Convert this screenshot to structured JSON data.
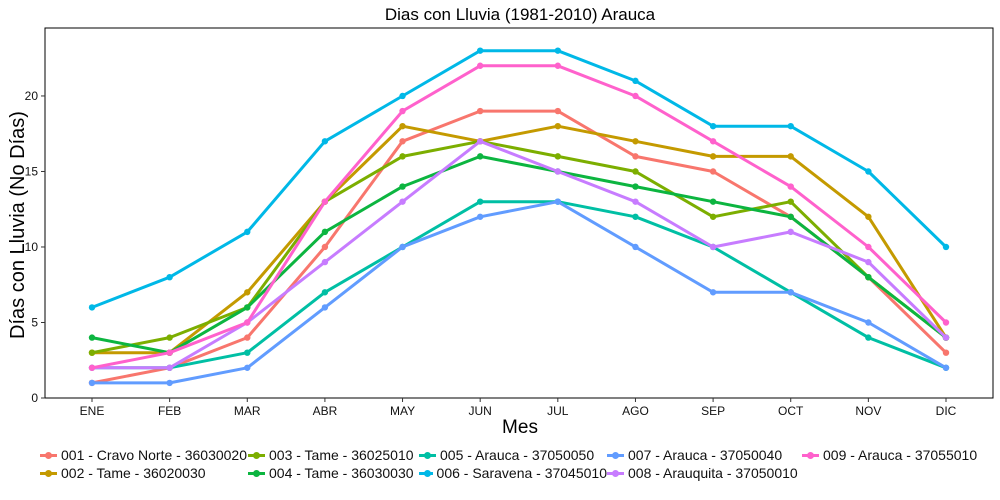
{
  "chart_data": {
    "type": "line",
    "title": "Dias con Lluvia (1981-2010)  Arauca",
    "xlabel": "Mes",
    "ylabel": "Días con Lluvia (No Días)",
    "categories": [
      "ENE",
      "FEB",
      "MAR",
      "ABR",
      "MAY",
      "JUN",
      "JUL",
      "AGO",
      "SEP",
      "OCT",
      "NOV",
      "DIC"
    ],
    "ylim": [
      0,
      24.5
    ],
    "yticks": [
      0,
      5,
      10,
      15,
      20
    ],
    "grid": false,
    "legend_position": "bottom",
    "series": [
      {
        "name": "001 - Cravo Norte - 36030020",
        "color": "#F8766D",
        "values": [
          1,
          2,
          4,
          10,
          17,
          19,
          19,
          16,
          15,
          12,
          8,
          3
        ]
      },
      {
        "name": "002 - Tame - 36020030",
        "color": "#C49A00",
        "values": [
          3,
          3,
          7,
          13,
          18,
          17,
          18,
          17,
          16,
          16,
          12,
          4
        ]
      },
      {
        "name": "003 - Tame - 36025010",
        "color": "#7CAE00",
        "values": [
          3,
          4,
          6,
          13,
          16,
          17,
          16,
          15,
          12,
          13,
          8,
          4
        ]
      },
      {
        "name": "004 - Tame - 36030030",
        "color": "#0CB540",
        "values": [
          4,
          3,
          6,
          11,
          14,
          16,
          15,
          14,
          13,
          12,
          8,
          4
        ]
      },
      {
        "name": "005 - Arauca - 37050050",
        "color": "#00BFA4",
        "values": [
          2,
          2,
          3,
          7,
          10,
          13,
          13,
          12,
          10,
          7,
          4,
          2
        ]
      },
      {
        "name": "006 - Saravena - 37045010",
        "color": "#00B8E7",
        "values": [
          6,
          8,
          11,
          17,
          20,
          23,
          23,
          21,
          18,
          18,
          15,
          10
        ]
      },
      {
        "name": "007 - Arauca - 37050040",
        "color": "#619CFF",
        "values": [
          1,
          1,
          2,
          6,
          10,
          12,
          13,
          10,
          7,
          7,
          5,
          2
        ]
      },
      {
        "name": "008 - Arauquita - 37050010",
        "color": "#C77CFF",
        "values": [
          2,
          2,
          5,
          9,
          13,
          17,
          15,
          13,
          10,
          11,
          9,
          4
        ]
      },
      {
        "name": "009 - Arauca - 37055010",
        "color": "#FF61CC",
        "values": [
          2,
          3,
          5,
          13,
          19,
          22,
          22,
          20,
          17,
          14,
          10,
          5
        ]
      }
    ]
  }
}
